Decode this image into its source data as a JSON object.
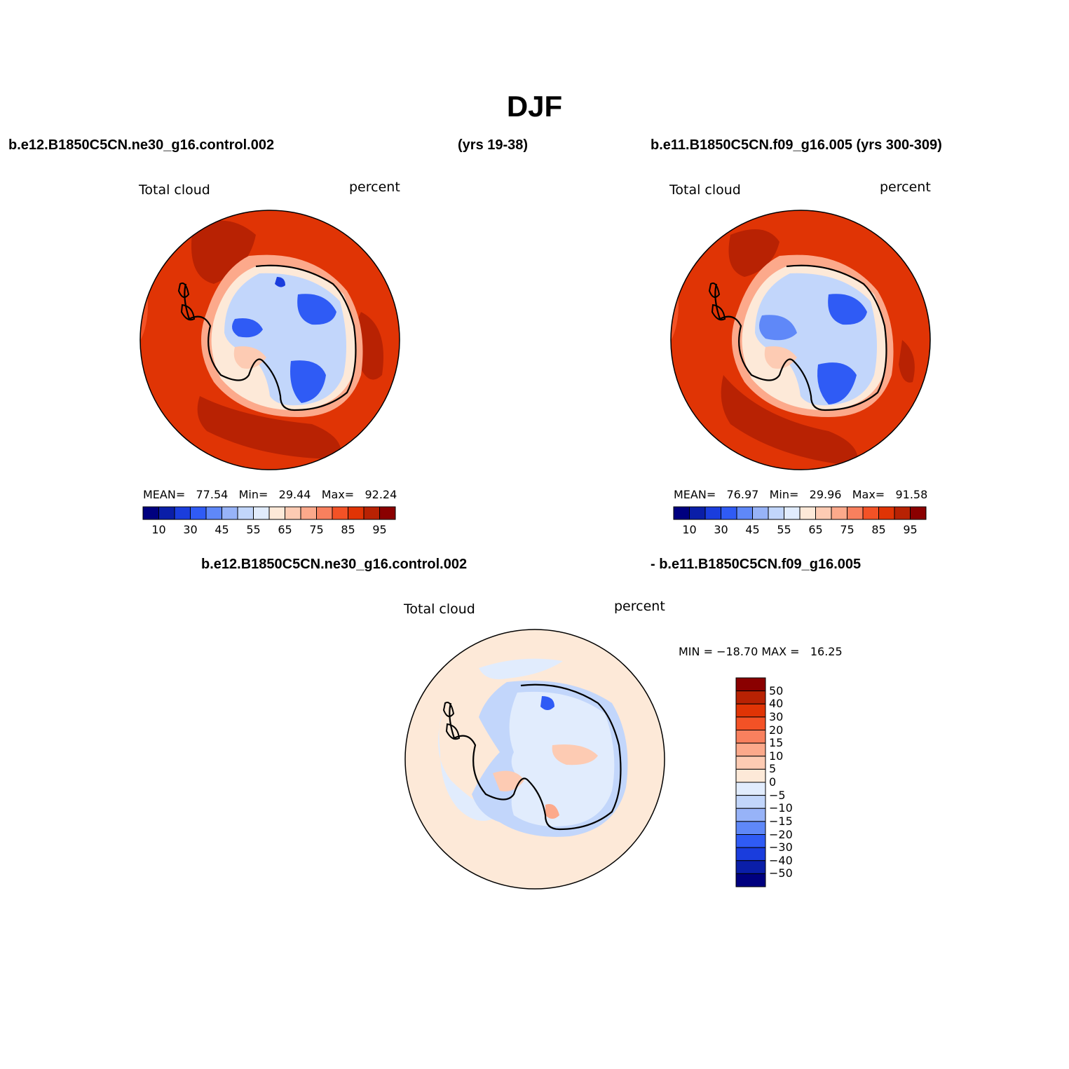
{
  "title": "DJF",
  "panels": [
    {
      "case_left": "b.e12.B1850C5CN.ne30_g16.control.002",
      "case_right": "(yrs 19-38)",
      "variable": "Total cloud",
      "units": "percent",
      "stats": {
        "mean_label": "MEAN=",
        "mean": "77.54",
        "min_label": "Min=",
        "min": "29.44",
        "max_label": "Max=",
        "max": "92.24"
      }
    },
    {
      "case_left": "b.e11.B1850C5CN.f09_g16.005 (yrs 300-309)",
      "variable": "Total cloud",
      "units": "percent",
      "stats": {
        "mean_label": "MEAN=",
        "mean": "76.97",
        "min_label": "Min=",
        "min": "29.96",
        "max_label": "Max=",
        "max": "91.58"
      }
    }
  ],
  "colorbar": {
    "colors": [
      "#00007f",
      "#0a1ea8",
      "#1a3ddd",
      "#2f5bf5",
      "#5f88f8",
      "#97b3f8",
      "#c2d6fb",
      "#e1ecfd",
      "#fde9d8",
      "#fdcbb3",
      "#fca98b",
      "#f8805e",
      "#f35226",
      "#e03405",
      "#b82203",
      "#8a0000"
    ],
    "tick_labels": [
      "10",
      "30",
      "45",
      "55",
      "65",
      "75",
      "85",
      "95"
    ]
  },
  "diff_panel": {
    "case_left": "b.e12.B1850C5CN.ne30_g16.control.002",
    "case_right": "- b.e11.B1850C5CN.f09_g16.005",
    "variable": "Total cloud",
    "units": "percent",
    "stats": "MIN = −18.70 MAX =   16.25",
    "colorbar_colors": [
      "#8a0000",
      "#b82203",
      "#e03405",
      "#f35226",
      "#f8805e",
      "#fca98b",
      "#fdcbb3",
      "#fde9d8",
      "#e1ecfd",
      "#c2d6fb",
      "#97b3f8",
      "#5f88f8",
      "#2f5bf5",
      "#1a3ddd",
      "#0a1ea8",
      "#00007f"
    ],
    "tick_labels": [
      "50",
      "40",
      "30",
      "20",
      "15",
      "10",
      "5",
      "0",
      "−5",
      "−10",
      "−15",
      "−20",
      "−30",
      "−40",
      "−50"
    ]
  }
}
